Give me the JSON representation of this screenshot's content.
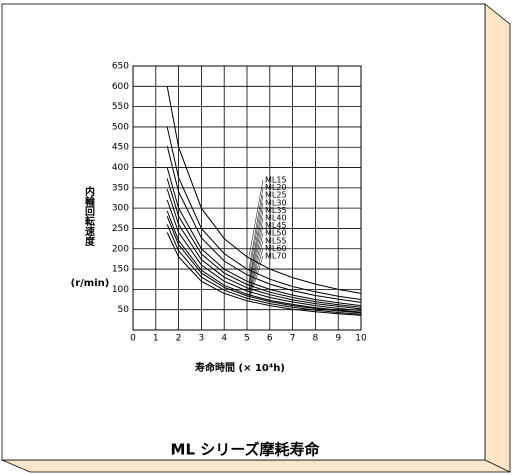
{
  "chart_data": {
    "type": "line",
    "title": "ML シリーズ摩耗寿命",
    "y_label": "内輪回転速度",
    "y_unit": "(r/min)",
    "x_label": "寿命時間 (× 10⁴h)",
    "x": [
      1.5,
      2,
      3,
      4,
      5,
      6,
      7,
      8,
      9,
      10
    ],
    "series": [
      {
        "name": "ML15",
        "color": "#000000",
        "values": [
          600,
          450,
          300,
          225,
          180,
          150,
          129,
          113,
          100,
          90
        ]
      },
      {
        "name": "ML20",
        "color": "#000000",
        "values": [
          500,
          375,
          250,
          188,
          150,
          125,
          107,
          94,
          83,
          75
        ]
      },
      {
        "name": "ML25",
        "color": "#000000",
        "values": [
          453,
          340,
          227,
          170,
          136,
          113,
          97,
          85,
          76,
          68
        ]
      },
      {
        "name": "ML30",
        "color": "#000000",
        "values": [
          400,
          300,
          200,
          150,
          120,
          100,
          86,
          75,
          67,
          60
        ]
      },
      {
        "name": "ML35",
        "color": "#000000",
        "values": [
          373,
          280,
          187,
          140,
          112,
          93,
          80,
          70,
          62,
          56
        ]
      },
      {
        "name": "ML40",
        "color": "#000000",
        "values": [
          347,
          260,
          173,
          130,
          104,
          87,
          74,
          65,
          58,
          52
        ]
      },
      {
        "name": "ML45",
        "color": "#000000",
        "values": [
          320,
          240,
          160,
          120,
          96,
          80,
          69,
          60,
          53,
          48
        ]
      },
      {
        "name": "ML50",
        "color": "#000000",
        "values": [
          293,
          220,
          147,
          110,
          88,
          73,
          63,
          55,
          49,
          44
        ]
      },
      {
        "name": "ML55",
        "color": "#000000",
        "values": [
          280,
          210,
          140,
          105,
          84,
          70,
          60,
          53,
          47,
          42
        ]
      },
      {
        "name": "ML60",
        "color": "#000000",
        "values": [
          260,
          195,
          130,
          98,
          78,
          65,
          56,
          49,
          43,
          39
        ]
      },
      {
        "name": "ML70",
        "color": "#000000",
        "values": [
          240,
          180,
          120,
          90,
          72,
          60,
          51,
          45,
          40,
          36
        ]
      }
    ],
    "xlim": [
      0,
      10
    ],
    "xticks": [
      0,
      1,
      2,
      3,
      4,
      5,
      6,
      7,
      8,
      9,
      10
    ],
    "ylim": [
      0,
      650
    ],
    "yticks": [
      50,
      100,
      150,
      200,
      250,
      300,
      350,
      400,
      450,
      500,
      550,
      600,
      650
    ],
    "grid": true
  }
}
